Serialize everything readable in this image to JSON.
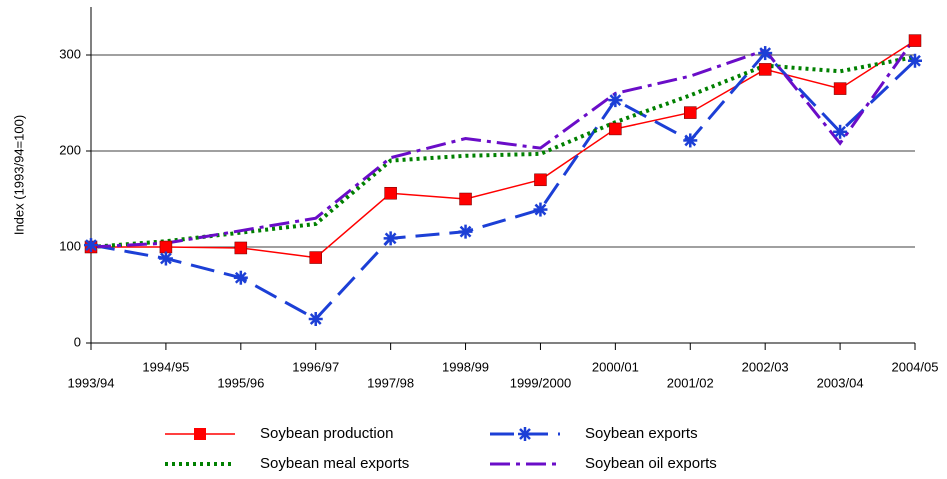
{
  "chart_data": {
    "type": "line",
    "y_label": "Index (1993/94=100)",
    "categories": [
      "1993/94",
      "1994/95",
      "1995/96",
      "1996/97",
      "1997/98",
      "1998/99",
      "1999/2000",
      "2000/01",
      "2001/02",
      "2002/03",
      "2003/04",
      "2004/05"
    ],
    "series": [
      {
        "name": "Soybean production",
        "color": "#ff0000",
        "dash": "solid",
        "width": 1.5,
        "marker": "square",
        "values": [
          100,
          100,
          99,
          89,
          156,
          150,
          170,
          223,
          240,
          285,
          265,
          315
        ]
      },
      {
        "name": "Soybean exports",
        "color": "#1c3fd6",
        "dash": "longdash",
        "width": 3,
        "marker": "asterisk",
        "values": [
          102,
          88,
          68,
          25,
          109,
          116,
          139,
          253,
          211,
          302,
          220,
          294
        ]
      },
      {
        "name": "Soybean meal exports",
        "color": "#008000",
        "dash": "dot",
        "width": 4,
        "marker": "none",
        "values": [
          100,
          106,
          115,
          124,
          190,
          195,
          197,
          230,
          258,
          289,
          283,
          298
        ]
      },
      {
        "name": "Soybean oil exports",
        "color": "#6a0dc8",
        "dash": "dashdot",
        "width": 3,
        "marker": "none",
        "values": [
          100,
          104,
          117,
          130,
          193,
          213,
          203,
          260,
          278,
          305,
          208,
          318
        ]
      }
    ],
    "ylim": [
      0,
      350
    ],
    "yticks": [
      0,
      100,
      200,
      300
    ],
    "grid": true,
    "legend": "bottom"
  }
}
